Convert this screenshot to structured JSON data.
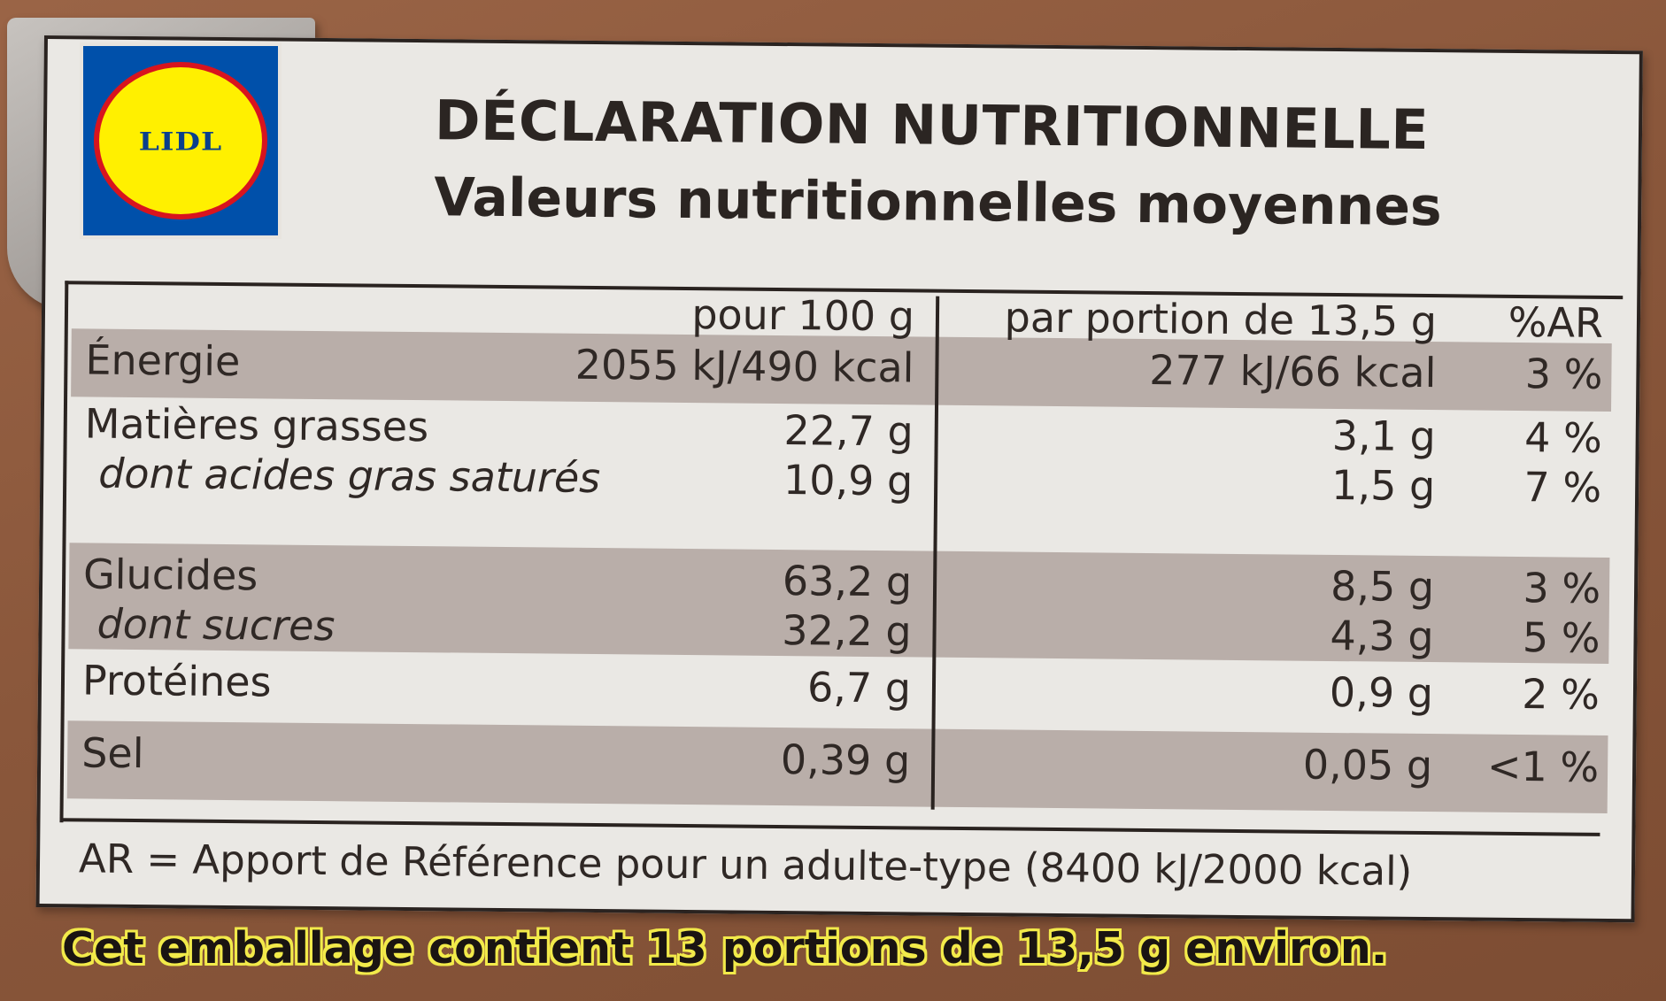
{
  "logo": {
    "brand": "LIDL"
  },
  "label": {
    "title": "DÉCLARATION NUTRITIONNELLE",
    "subtitle": "Valeurs nutritionnelles moyennes",
    "columns": {
      "per100": "pour 100 g",
      "perPortion": "par portion de 13,5 g",
      "ar": "%AR"
    },
    "rows": [
      {
        "label": "Énergie",
        "per100": "2055 kJ/490 kcal",
        "perPortion": "277 kJ/66 kcal",
        "ar": "3 %"
      },
      {
        "label": "Matières grasses",
        "per100": "22,7 g",
        "perPortion": "3,1 g",
        "ar": "4 %"
      },
      {
        "label": "dont acides gras saturés",
        "per100": "10,9 g",
        "perPortion": "1,5 g",
        "ar": "7 %"
      },
      {
        "label": "Glucides",
        "per100": "63,2 g",
        "perPortion": "8,5 g",
        "ar": "3 %"
      },
      {
        "label": "dont sucres",
        "per100": "32,2 g",
        "perPortion": "4,3 g",
        "ar": "5 %"
      },
      {
        "label": "Protéines",
        "per100": "6,7 g",
        "perPortion": "0,9 g",
        "ar": "2 %"
      },
      {
        "label": "Sel",
        "per100": "0,39 g",
        "perPortion": "0,05 g",
        "ar": "<1 %"
      }
    ],
    "footnote": "AR = Apport de Référence pour un adulte-type (8400 kJ/2000 kcal)"
  },
  "packageNote": "Cet emballage contient 13 portions de 13,5 g environ.",
  "colors": {
    "background": "#8a573b",
    "card": "#eae8e4",
    "band": "#b9aea9",
    "ribbon": "#a9a4a0",
    "logoBlue": "#0050aa",
    "logoYellow": "#fff000",
    "logoRed": "#d8141e",
    "noteOutline": "#f2ea4a"
  }
}
